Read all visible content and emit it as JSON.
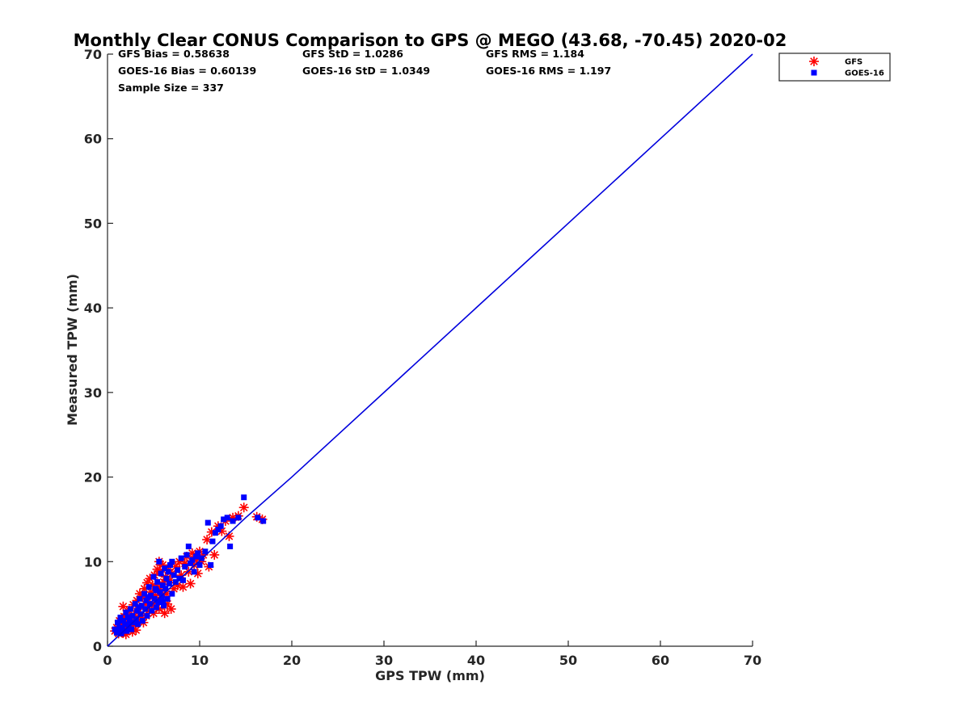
{
  "chart_data": {
    "type": "scatter",
    "title": "Monthly Clear CONUS Comparison to GPS @ MEGO (43.68, -70.45) 2020-02",
    "xlabel": "GPS TPW (mm)",
    "ylabel": "Measured TPW (mm)",
    "xlim": [
      0,
      70
    ],
    "ylim": [
      0,
      70
    ],
    "xticks": [
      "0",
      "10",
      "20",
      "30",
      "40",
      "50",
      "60",
      "70"
    ],
    "yticks": [
      "0",
      "10",
      "20",
      "30",
      "40",
      "50",
      "60",
      "70"
    ],
    "grid": false,
    "legend_position": "top-right",
    "stats": {
      "gfs_bias": "GFS Bias = 0.58638",
      "goes_bias": "GOES-16 Bias = 0.60139",
      "sample_size": "Sample Size = 337",
      "gfs_std": "GFS StD = 1.0286",
      "goes_std": "GOES-16 StD = 1.0349",
      "gfs_rms": "GFS RMS = 1.184",
      "goes_rms": "GOES-16 RMS = 1.197"
    },
    "series": [
      {
        "name": "GFS",
        "marker": "asterisk",
        "color": "#ff0000",
        "points": [
          [
            0.8,
            1.8
          ],
          [
            1.0,
            2.2
          ],
          [
            1.2,
            1.5
          ],
          [
            1.3,
            3.0
          ],
          [
            1.5,
            2.5
          ],
          [
            1.6,
            1.6
          ],
          [
            1.7,
            4.7
          ],
          [
            1.8,
            3.5
          ],
          [
            1.9,
            2.1
          ],
          [
            2.0,
            1.4
          ],
          [
            2.1,
            3.8
          ],
          [
            2.2,
            2.8
          ],
          [
            2.3,
            1.9
          ],
          [
            2.4,
            4.2
          ],
          [
            2.5,
            3.2
          ],
          [
            2.6,
            2.4
          ],
          [
            2.7,
            1.7
          ],
          [
            2.8,
            4.9
          ],
          [
            2.9,
            3.6
          ],
          [
            3.0,
            2.6
          ],
          [
            3.1,
            1.9
          ],
          [
            3.2,
            5.4
          ],
          [
            3.3,
            4.0
          ],
          [
            3.4,
            3.0
          ],
          [
            3.5,
            6.2
          ],
          [
            3.6,
            4.6
          ],
          [
            3.7,
            3.4
          ],
          [
            3.8,
            5.8
          ],
          [
            3.9,
            2.8
          ],
          [
            4.0,
            6.8
          ],
          [
            4.1,
            5.0
          ],
          [
            4.2,
            3.6
          ],
          [
            4.3,
            7.5
          ],
          [
            4.4,
            5.6
          ],
          [
            4.5,
            4.2
          ],
          [
            4.6,
            8.0
          ],
          [
            4.7,
            6.4
          ],
          [
            4.8,
            4.8
          ],
          [
            4.9,
            7.2
          ],
          [
            5.0,
            3.9
          ],
          [
            5.1,
            8.4
          ],
          [
            5.2,
            6.0
          ],
          [
            5.3,
            5.2
          ],
          [
            5.4,
            9.1
          ],
          [
            5.5,
            7.0
          ],
          [
            5.6,
            4.4
          ],
          [
            5.7,
            8.8
          ],
          [
            5.8,
            6.6
          ],
          [
            5.9,
            5.8
          ],
          [
            6.0,
            9.6
          ],
          [
            6.1,
            7.6
          ],
          [
            6.2,
            3.9
          ],
          [
            6.3,
            8.2
          ],
          [
            6.4,
            6.2
          ],
          [
            6.5,
            5.0
          ],
          [
            6.6,
            9.0
          ],
          [
            6.8,
            7.8
          ],
          [
            6.9,
            4.4
          ],
          [
            7.0,
            8.6
          ],
          [
            7.2,
            6.8
          ],
          [
            7.4,
            9.4
          ],
          [
            7.6,
            7.2
          ],
          [
            7.8,
            10.0
          ],
          [
            8.0,
            8.4
          ],
          [
            8.2,
            7.0
          ],
          [
            8.4,
            9.8
          ],
          [
            8.6,
            10.6
          ],
          [
            8.8,
            8.8
          ],
          [
            9.0,
            7.4
          ],
          [
            9.2,
            11.0
          ],
          [
            9.4,
            9.6
          ],
          [
            9.6,
            10.2
          ],
          [
            9.8,
            8.6
          ],
          [
            10.0,
            11.2
          ],
          [
            10.2,
            10.0
          ],
          [
            10.4,
            10.8
          ],
          [
            10.8,
            12.6
          ],
          [
            11.0,
            9.4
          ],
          [
            11.3,
            13.5
          ],
          [
            11.6,
            10.8
          ],
          [
            12.0,
            14.2
          ],
          [
            12.4,
            13.6
          ],
          [
            12.8,
            14.8
          ],
          [
            13.2,
            13.0
          ],
          [
            13.6,
            15.2
          ],
          [
            14.2,
            15.4
          ],
          [
            14.8,
            16.4
          ],
          [
            16.2,
            15.3
          ],
          [
            16.8,
            15.0
          ],
          [
            5.6,
            10.0
          ]
        ]
      },
      {
        "name": "GOES-16",
        "marker": "square",
        "color": "#0000ff",
        "points": [
          [
            0.8,
            2.0
          ],
          [
            1.0,
            1.6
          ],
          [
            1.1,
            2.8
          ],
          [
            1.3,
            2.2
          ],
          [
            1.4,
            3.4
          ],
          [
            1.6,
            2.0
          ],
          [
            1.7,
            3.0
          ],
          [
            1.9,
            2.6
          ],
          [
            2.0,
            4.0
          ],
          [
            2.1,
            1.8
          ],
          [
            2.2,
            3.4
          ],
          [
            2.3,
            2.4
          ],
          [
            2.5,
            4.4
          ],
          [
            2.6,
            2.0
          ],
          [
            2.7,
            3.6
          ],
          [
            2.8,
            2.8
          ],
          [
            3.0,
            5.0
          ],
          [
            3.1,
            3.2
          ],
          [
            3.2,
            4.2
          ],
          [
            3.3,
            2.6
          ],
          [
            3.5,
            5.6
          ],
          [
            3.6,
            3.8
          ],
          [
            3.7,
            4.8
          ],
          [
            3.8,
            3.0
          ],
          [
            4.0,
            6.2
          ],
          [
            4.1,
            4.4
          ],
          [
            4.2,
            5.4
          ],
          [
            4.3,
            3.6
          ],
          [
            4.5,
            7.0
          ],
          [
            4.6,
            5.0
          ],
          [
            4.7,
            6.0
          ],
          [
            4.8,
            4.2
          ],
          [
            5.0,
            8.2
          ],
          [
            5.1,
            5.6
          ],
          [
            5.2,
            6.8
          ],
          [
            5.3,
            4.6
          ],
          [
            5.4,
            7.6
          ],
          [
            5.5,
            5.2
          ],
          [
            5.6,
            10.0
          ],
          [
            5.7,
            6.4
          ],
          [
            5.8,
            8.6
          ],
          [
            5.9,
            5.8
          ],
          [
            6.0,
            7.2
          ],
          [
            6.1,
            4.8
          ],
          [
            6.2,
            9.2
          ],
          [
            6.3,
            6.8
          ],
          [
            6.4,
            8.0
          ],
          [
            6.5,
            5.6
          ],
          [
            6.6,
            8.8
          ],
          [
            6.7,
            7.4
          ],
          [
            6.8,
            9.6
          ],
          [
            7.0,
            6.2
          ],
          [
            7.2,
            8.4
          ],
          [
            7.4,
            7.6
          ],
          [
            7.6,
            9.0
          ],
          [
            7.8,
            8.0
          ],
          [
            8.0,
            10.4
          ],
          [
            8.2,
            7.8
          ],
          [
            8.4,
            9.4
          ],
          [
            8.6,
            10.8
          ],
          [
            8.8,
            11.8
          ],
          [
            9.0,
            9.8
          ],
          [
            9.2,
            10.2
          ],
          [
            9.4,
            8.8
          ],
          [
            9.6,
            10.6
          ],
          [
            9.8,
            11.0
          ],
          [
            10.0,
            9.6
          ],
          [
            10.2,
            10.4
          ],
          [
            10.6,
            11.2
          ],
          [
            10.9,
            14.6
          ],
          [
            11.2,
            9.6
          ],
          [
            11.4,
            12.4
          ],
          [
            11.7,
            13.4
          ],
          [
            12.0,
            13.8
          ],
          [
            12.3,
            14.2
          ],
          [
            12.6,
            15.0
          ],
          [
            13.0,
            15.2
          ],
          [
            13.3,
            11.8
          ],
          [
            13.6,
            14.8
          ],
          [
            14.2,
            15.2
          ],
          [
            14.8,
            17.6
          ],
          [
            16.3,
            15.2
          ],
          [
            16.9,
            14.8
          ],
          [
            3.4,
            4.6
          ],
          [
            4.4,
            5.8
          ],
          [
            5.3,
            6.6
          ],
          [
            6.0,
            5.2
          ],
          [
            2.4,
            3.0
          ],
          [
            1.5,
            1.5
          ],
          [
            7.0,
            10.0
          ]
        ]
      },
      {
        "name": "",
        "marker": "line",
        "color": "#0000dd",
        "points": [
          [
            0,
            0
          ],
          [
            5,
            5.1
          ],
          [
            10,
            10.1
          ],
          [
            15,
            15.2
          ],
          [
            20,
            20.0
          ],
          [
            30,
            30.0
          ],
          [
            40,
            40.0
          ],
          [
            50,
            50.0
          ],
          [
            60,
            60.0
          ],
          [
            70,
            70.0
          ]
        ]
      }
    ]
  },
  "legend": {
    "items": [
      {
        "label": "GFS",
        "color": "#ff0000",
        "marker": "asterisk"
      },
      {
        "label": "GOES-16",
        "color": "#0000ff",
        "marker": "square"
      }
    ]
  }
}
